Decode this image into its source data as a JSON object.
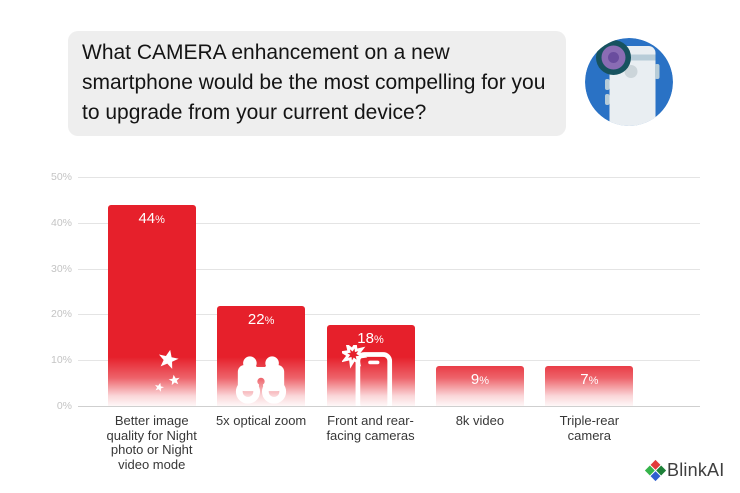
{
  "question_bubble": {
    "text": "What CAMERA enhancement on a new smartphone would be the most compelling for you to upgrade from your current device?"
  },
  "avatar": {
    "icon": "smartphone-rear-camera-icon",
    "colors": {
      "circle": "#2a72c5",
      "phone": "#e9eef2",
      "accent": "#b7ccd8",
      "flash": "#ccd5da",
      "lens_ring": "#17525f",
      "lens": "#8a6cb4",
      "lens_center": "#6a4d9e"
    }
  },
  "chart_data": {
    "type": "bar",
    "title": "",
    "xlabel": "",
    "ylabel": "",
    "categories": [
      "Better image quality for Night photo or Night video mode",
      "5x optical zoom",
      "Front and rear-facing cameras",
      "8k video",
      "Triple-rear camera"
    ],
    "values": [
      44,
      22,
      18,
      9,
      7
    ],
    "value_labels": [
      "44%",
      "22%",
      "18%",
      "9%",
      "7%"
    ],
    "bar_icons": [
      "moon-stars",
      "binoculars",
      "phone-flash",
      null,
      null
    ],
    "bar_color": "#e6202b",
    "y_ticks": [
      "0%",
      "10%",
      "20%",
      "30%",
      "40%",
      "50%"
    ],
    "ylim": [
      0,
      50
    ],
    "grid": true,
    "legend": false,
    "layout": {
      "visual_bar_heights": [
        44,
        22,
        18,
        9,
        9
      ],
      "bars_fade_to_white_at_bottom": true
    }
  },
  "brand": {
    "name": "BlinkAI",
    "logo_icon": "blinkai-diamond-icon",
    "logo_colors": [
      "#e23b3b",
      "#1d8038",
      "#35b44a",
      "#2f5fd0"
    ]
  }
}
